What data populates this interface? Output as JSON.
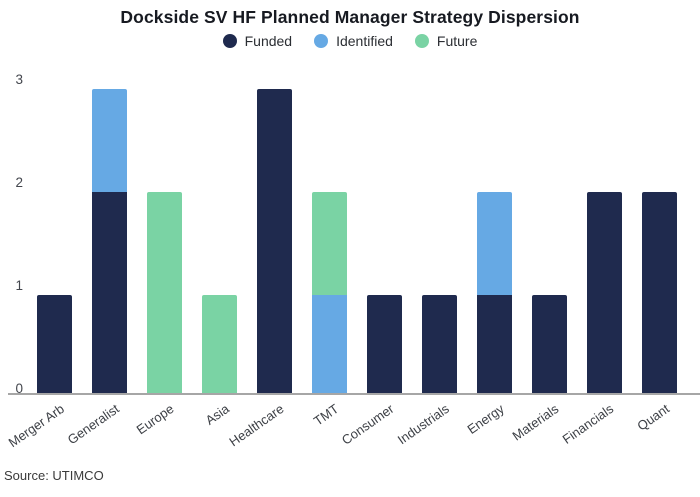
{
  "title": "Dockside SV HF Planned Manager Strategy Dispersion",
  "source_note": "Source: UTIMCO",
  "colors": {
    "funded": "#1f2a4e",
    "identified": "#66a9e4",
    "future": "#7ad3a4",
    "axis_line": "#a6a6a6",
    "title_text": "#171a21",
    "tick_text": "#3d4046"
  },
  "chart_data": {
    "type": "bar",
    "stacked": true,
    "title": "Dockside SV HF Planned Manager Strategy Dispersion",
    "categories": [
      "Merger Arb",
      "Generalist",
      "Europe",
      "Asia",
      "Healthcare",
      "TMT",
      "Consumer",
      "Industrials",
      "Energy",
      "Materials",
      "Financials",
      "Quant"
    ],
    "series": [
      {
        "name": "Funded",
        "color": "#1f2a4e",
        "values": [
          0.95,
          1.95,
          0,
          0,
          2.95,
          0,
          0.95,
          0.95,
          0.95,
          0.95,
          1.95,
          1.95
        ]
      },
      {
        "name": "Identified",
        "color": "#66a9e4",
        "values": [
          0,
          1,
          0,
          0,
          0,
          0.95,
          0,
          0,
          1,
          0,
          0,
          0
        ]
      },
      {
        "name": "Future",
        "color": "#7ad3a4",
        "values": [
          0,
          0,
          1.95,
          0.95,
          0,
          1,
          0,
          0,
          0,
          0,
          0,
          0
        ]
      }
    ],
    "totals": [
      0.95,
      2.95,
      1.95,
      0.95,
      2.95,
      1.95,
      0.95,
      0.95,
      1.95,
      0.95,
      1.95,
      1.95
    ],
    "xlabel": "",
    "ylabel": "",
    "yticks": [
      0,
      1,
      2,
      3
    ],
    "ylim": [
      0,
      3.02
    ],
    "grid": false,
    "legend_position": "top-center",
    "x_tick_rotation": -35
  }
}
